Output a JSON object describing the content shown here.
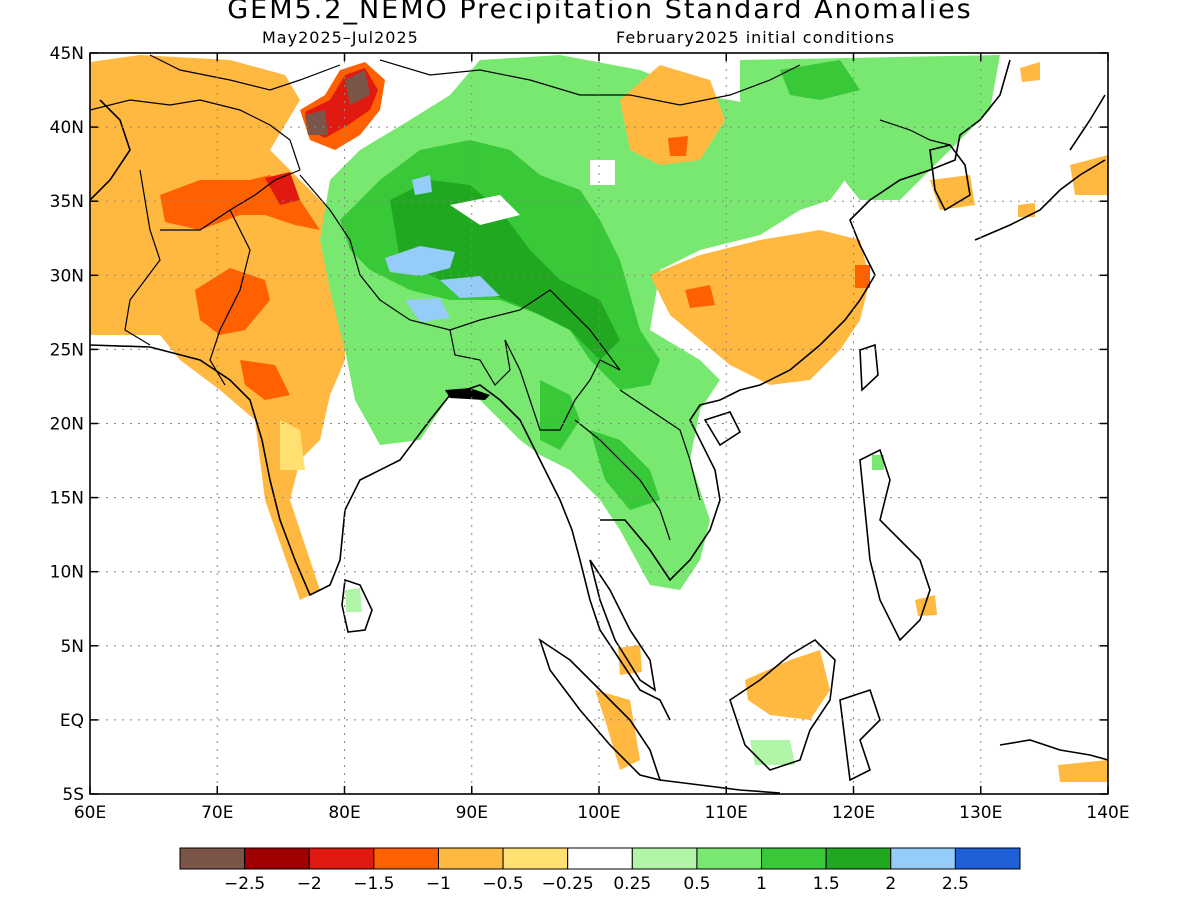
{
  "title": "GEM5.2_NEMO Precipitation Standard Anomalies",
  "period": "May2025–Jul2025",
  "init": "February2025 initial conditions",
  "map": {
    "lon_ticks": [
      "60E",
      "70E",
      "80E",
      "90E",
      "100E",
      "110E",
      "120E",
      "130E",
      "140E"
    ],
    "lat_ticks": [
      "45N",
      "40N",
      "35N",
      "30N",
      "25N",
      "20N",
      "15N",
      "10N",
      "5N",
      "EQ",
      "5S"
    ],
    "lon_range": [
      60,
      140
    ],
    "lat_range": [
      -5,
      45
    ],
    "grid": "dotted"
  },
  "colorbar": {
    "labels": [
      "−2.5",
      "−2",
      "−1.5",
      "−1",
      "−0.5",
      "−0.25",
      "0.25",
      "0.5",
      "1",
      "1.5",
      "2",
      "2.5"
    ],
    "colors": [
      "#7a5548",
      "#a00000",
      "#e01a10",
      "#ff6000",
      "#ffb840",
      "#ffe070",
      "#ffffff",
      "#b0f5a8",
      "#78e870",
      "#38c838",
      "#20a820",
      "#96ccf8",
      "#1e60d8"
    ]
  }
}
